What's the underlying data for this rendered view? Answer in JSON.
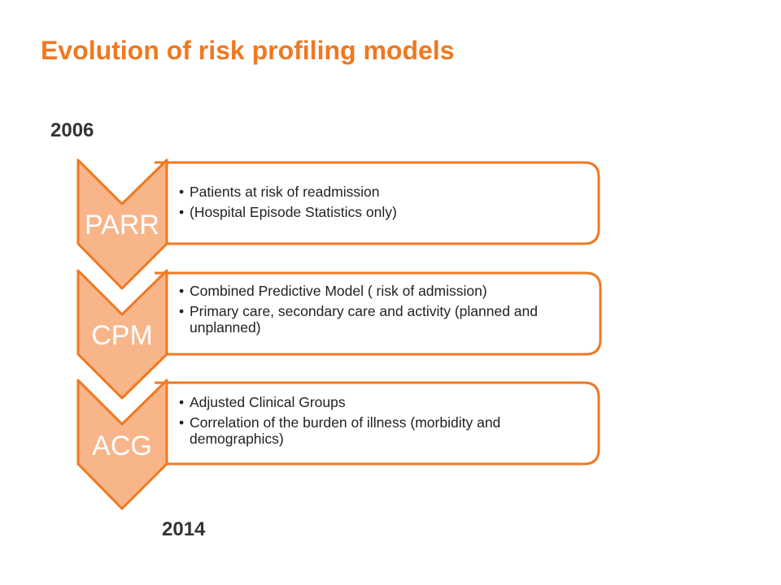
{
  "title": "Evolution of risk profiling models",
  "timeline": {
    "start_year": "2006",
    "end_year": "2014"
  },
  "colors": {
    "accent": "#f07820",
    "chevron_fill": "#f8b58a",
    "chevron_text": "#ffffff"
  },
  "stages": [
    {
      "label": "PARR",
      "bullets": [
        "Patients at risk of readmission",
        "(Hospital Episode Statistics only)"
      ]
    },
    {
      "label": "CPM",
      "bullets": [
        "Combined Predictive Model ( risk of admission)",
        "Primary care, secondary care and activity (planned and unplanned)"
      ]
    },
    {
      "label": "ACG",
      "bullets": [
        "Adjusted Clinical Groups",
        "Correlation of the burden of illness (morbidity and demographics)"
      ]
    }
  ]
}
